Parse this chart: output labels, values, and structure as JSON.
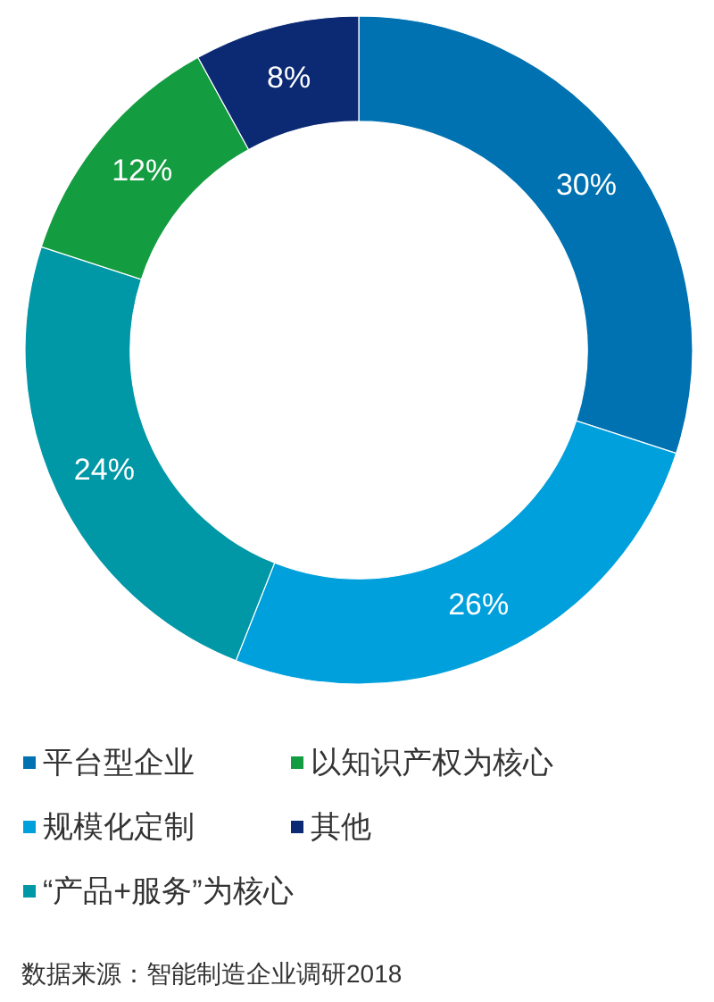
{
  "chart_data": {
    "type": "donut",
    "categories": [
      "平台型企业",
      "规模化定制",
      "“产品+服务”为核心",
      "以知识产权为核心",
      "其他"
    ],
    "values": [
      30,
      26,
      24,
      12,
      8
    ],
    "colors": [
      "#0072b1",
      "#00a0dd",
      "#0097a6",
      "#139c40",
      "#0c2a73"
    ],
    "value_labels": [
      "30%",
      "26%",
      "24%",
      "12%",
      "8%"
    ],
    "legend": "bottom",
    "annotations": [
      "数据来源：智能制造企业调研2018"
    ]
  }
}
